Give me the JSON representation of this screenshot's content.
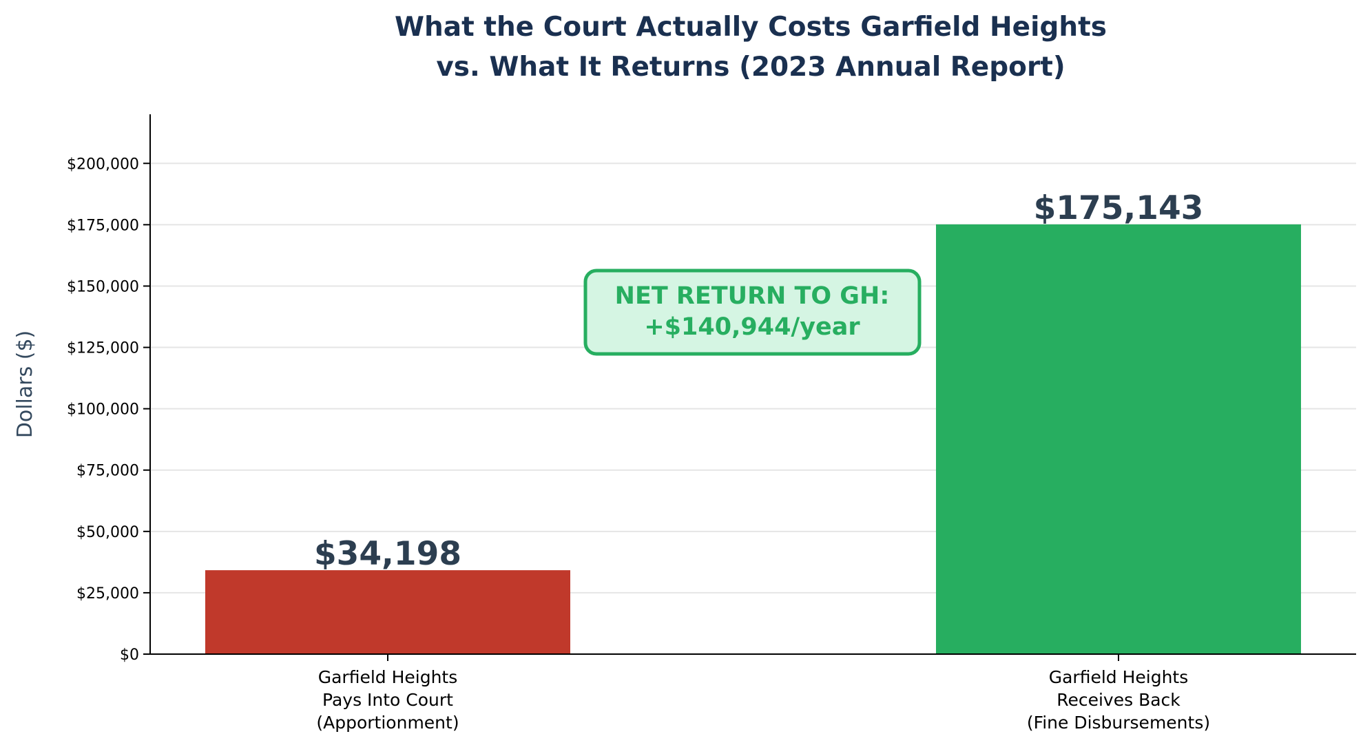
{
  "chart_data": {
    "type": "bar",
    "title": [
      "What the Court Actually Costs Garfield Heights",
      "vs. What It Returns (2023 Annual Report)"
    ],
    "xlabel": "",
    "ylabel": "Dollars ($)",
    "ylim": [
      0,
      220000
    ],
    "yticks": [
      0,
      25000,
      50000,
      75000,
      100000,
      125000,
      150000,
      175000,
      200000
    ],
    "ytick_labels": [
      "$0",
      "$25,000",
      "$50,000",
      "$75,000",
      "$100,000",
      "$125,000",
      "$150,000",
      "$175,000",
      "$200,000"
    ],
    "grid": "horizontal",
    "categories": [
      [
        "Garfield Heights",
        "Pays Into Court",
        "(Apportionment)"
      ],
      [
        "Garfield Heights",
        "Receives Back",
        "(Fine Disbursements)"
      ]
    ],
    "values": [
      34198,
      175143
    ],
    "value_labels": [
      "$34,198",
      "$175,143"
    ],
    "colors": [
      "#c0392b",
      "#27ae60"
    ],
    "annotation": {
      "lines": [
        "NET RETURN TO GH:",
        "+$140,944/year"
      ],
      "text_color": "#27ae60",
      "fill": "#d5f5e3",
      "border": "#27ae60"
    }
  }
}
